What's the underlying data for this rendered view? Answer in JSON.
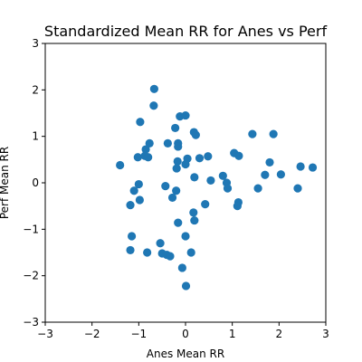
{
  "chart_data": {
    "type": "scatter",
    "title": "Standardized Mean RR for Anes vs Perf",
    "xlabel": "Anes Mean RR",
    "ylabel": "Perf Mean RR",
    "xlim": [
      -3,
      3
    ],
    "ylim": [
      -3,
      3
    ],
    "xticks": [
      "−3",
      "−2",
      "−1",
      "0",
      "1",
      "2",
      "3"
    ],
    "yticks": [
      "−3",
      "−2",
      "−1",
      "0",
      "1",
      "2",
      "3"
    ],
    "grid": false,
    "legend": "none",
    "marker_color": "#1f77b4",
    "points": [
      {
        "x": -0.67,
        "y": 2.02
      },
      {
        "x": -0.68,
        "y": 1.66
      },
      {
        "x": -0.97,
        "y": 1.31
      },
      {
        "x": -0.12,
        "y": 1.43
      },
      {
        "x": 0.0,
        "y": 1.45
      },
      {
        "x": -0.22,
        "y": 1.18
      },
      {
        "x": 0.18,
        "y": 1.09
      },
      {
        "x": 0.22,
        "y": 1.03
      },
      {
        "x": -0.38,
        "y": 0.85
      },
      {
        "x": -0.16,
        "y": 0.85
      },
      {
        "x": -0.77,
        "y": 0.85
      },
      {
        "x": -0.85,
        "y": 0.72
      },
      {
        "x": -0.16,
        "y": 0.78
      },
      {
        "x": -1.02,
        "y": 0.55
      },
      {
        "x": -0.87,
        "y": 0.58
      },
      {
        "x": -0.8,
        "y": 0.55
      },
      {
        "x": 0.04,
        "y": 0.52
      },
      {
        "x": 0.3,
        "y": 0.53
      },
      {
        "x": 0.48,
        "y": 0.57
      },
      {
        "x": 1.04,
        "y": 0.64
      },
      {
        "x": 1.14,
        "y": 0.58
      },
      {
        "x": 1.43,
        "y": 1.05
      },
      {
        "x": 1.88,
        "y": 1.05
      },
      {
        "x": 1.8,
        "y": 0.44
      },
      {
        "x": -1.4,
        "y": 0.38
      },
      {
        "x": -0.17,
        "y": 0.46
      },
      {
        "x": -0.19,
        "y": 0.31
      },
      {
        "x": 0.0,
        "y": 0.4
      },
      {
        "x": 2.46,
        "y": 0.35
      },
      {
        "x": 2.72,
        "y": 0.33
      },
      {
        "x": 1.7,
        "y": 0.17
      },
      {
        "x": 2.04,
        "y": 0.18
      },
      {
        "x": 0.19,
        "y": 0.12
      },
      {
        "x": 0.8,
        "y": 0.15
      },
      {
        "x": 0.54,
        "y": 0.05
      },
      {
        "x": 0.88,
        "y": 0.0
      },
      {
        "x": 0.9,
        "y": -0.12
      },
      {
        "x": -1.0,
        "y": -0.03
      },
      {
        "x": -0.43,
        "y": -0.07
      },
      {
        "x": -1.1,
        "y": -0.17
      },
      {
        "x": -0.2,
        "y": -0.17
      },
      {
        "x": 1.55,
        "y": -0.12
      },
      {
        "x": 2.4,
        "y": -0.12
      },
      {
        "x": -0.28,
        "y": -0.32
      },
      {
        "x": -0.98,
        "y": -0.37
      },
      {
        "x": -1.18,
        "y": -0.48
      },
      {
        "x": 0.42,
        "y": -0.46
      },
      {
        "x": 1.13,
        "y": -0.42
      },
      {
        "x": 1.11,
        "y": -0.5
      },
      {
        "x": 0.17,
        "y": -0.64
      },
      {
        "x": 0.19,
        "y": -0.81
      },
      {
        "x": -0.16,
        "y": -0.86
      },
      {
        "x": -1.15,
        "y": -1.15
      },
      {
        "x": 0.0,
        "y": -1.15
      },
      {
        "x": -0.54,
        "y": -1.3
      },
      {
        "x": -1.18,
        "y": -1.45
      },
      {
        "x": -0.82,
        "y": -1.5
      },
      {
        "x": -0.5,
        "y": -1.52
      },
      {
        "x": -0.4,
        "y": -1.55
      },
      {
        "x": -0.33,
        "y": -1.58
      },
      {
        "x": 0.12,
        "y": -1.5
      },
      {
        "x": -0.07,
        "y": -1.83
      },
      {
        "x": 0.01,
        "y": -2.22
      }
    ]
  }
}
